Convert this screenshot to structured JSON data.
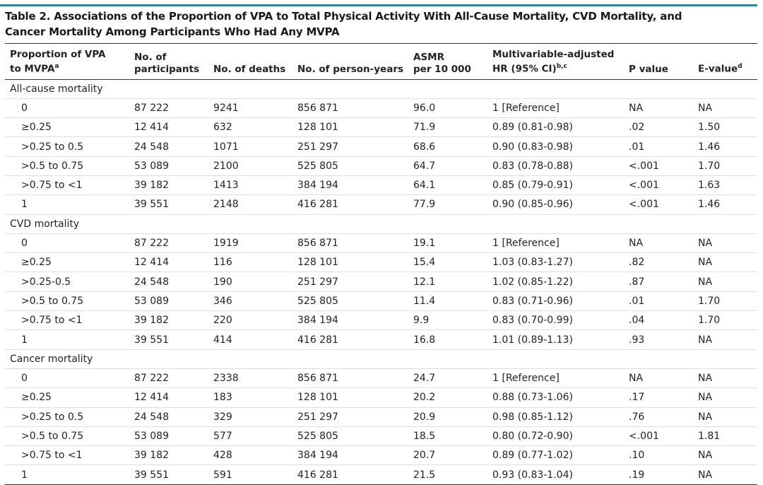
{
  "title": "Table 2. Associations of the Proportion of VPA to Total Physical Activity With All-Cause Mortality, CVD Mortality, and Cancer Mortality Among Participants Who Had Any MVPA",
  "columns": [
    {
      "lines": [
        "Proportion of VPA",
        "to MVPA"
      ],
      "sup": "a"
    },
    {
      "lines": [
        "No. of",
        "participants"
      ]
    },
    {
      "lines": [
        "No. of deaths"
      ]
    },
    {
      "lines": [
        "No. of person-years"
      ]
    },
    {
      "lines": [
        "ASMR",
        "per 10 000"
      ]
    },
    {
      "lines": [
        "Multivariable-adjusted",
        "HR (95% CI)"
      ],
      "sup": "b,c"
    },
    {
      "lines": [
        "P value"
      ]
    },
    {
      "lines": [
        "E-value"
      ],
      "sup": "d"
    }
  ],
  "sections": [
    {
      "name": "All-cause mortality",
      "rows": [
        [
          "0",
          "87 222",
          "9241",
          "856 871",
          "96.0",
          "1 [Reference]",
          "NA",
          "NA"
        ],
        [
          "≥0.25",
          "12 414",
          "632",
          "128 101",
          "71.9",
          "0.89 (0.81-0.98)",
          ".02",
          "1.50"
        ],
        [
          ">0.25 to 0.5",
          "24 548",
          "1071",
          "251 297",
          "68.6",
          "0.90 (0.83-0.98)",
          ".01",
          "1.46"
        ],
        [
          ">0.5 to 0.75",
          "53 089",
          "2100",
          "525 805",
          "64.7",
          "0.83 (0.78-0.88)",
          "<.001",
          "1.70"
        ],
        [
          ">0.75 to <1",
          "39 182",
          "1413",
          "384 194",
          "64.1",
          "0.85 (0.79-0.91)",
          "<.001",
          "1.63"
        ],
        [
          "1",
          "39 551",
          "2148",
          "416 281",
          "77.9",
          "0.90 (0.85-0.96)",
          "<.001",
          "1.46"
        ]
      ]
    },
    {
      "name": "CVD mortality",
      "rows": [
        [
          "0",
          "87 222",
          "1919",
          "856 871",
          "19.1",
          "1 [Reference]",
          "NA",
          "NA"
        ],
        [
          "≥0.25",
          "12 414",
          "116",
          "128 101",
          "15.4",
          "1.03 (0.83-1.27)",
          ".82",
          "NA"
        ],
        [
          ">0.25-0.5",
          "24 548",
          "190",
          "251 297",
          "12.1",
          "1.02 (0.85-1.22)",
          ".87",
          "NA"
        ],
        [
          ">0.5 to 0.75",
          "53 089",
          "346",
          "525 805",
          "11.4",
          "0.83 (0.71-0.96)",
          ".01",
          "1.70"
        ],
        [
          ">0.75 to <1",
          "39 182",
          "220",
          "384 194",
          "9.9",
          "0.83 (0.70-0.99)",
          ".04",
          "1.70"
        ],
        [
          "1",
          "39 551",
          "414",
          "416 281",
          "16.8",
          "1.01 (0.89-1.13)",
          ".93",
          "NA"
        ]
      ]
    },
    {
      "name": "Cancer mortality",
      "rows": [
        [
          "0",
          "87 222",
          "2338",
          "856 871",
          "24.7",
          "1 [Reference]",
          "NA",
          "NA"
        ],
        [
          "≥0.25",
          "12 414",
          "183",
          "128 101",
          "20.2",
          "0.88 (0.73-1.06)",
          ".17",
          "NA"
        ],
        [
          ">0.25 to 0.5",
          "24 548",
          "329",
          "251 297",
          "20.9",
          "0.98 (0.85-1.12)",
          ".76",
          "NA"
        ],
        [
          ">0.5 to 0.75",
          "53 089",
          "577",
          "525 805",
          "18.5",
          "0.80 (0.72-0.90)",
          "<.001",
          "1.81"
        ],
        [
          ">0.75 to <1",
          "39 182",
          "428",
          "384 194",
          "20.7",
          "0.89 (0.77-1.02)",
          ".10",
          "NA"
        ],
        [
          "1",
          "39 551",
          "591",
          "416 281",
          "21.5",
          "0.93 (0.83-1.04)",
          ".19",
          "NA"
        ]
      ]
    }
  ]
}
